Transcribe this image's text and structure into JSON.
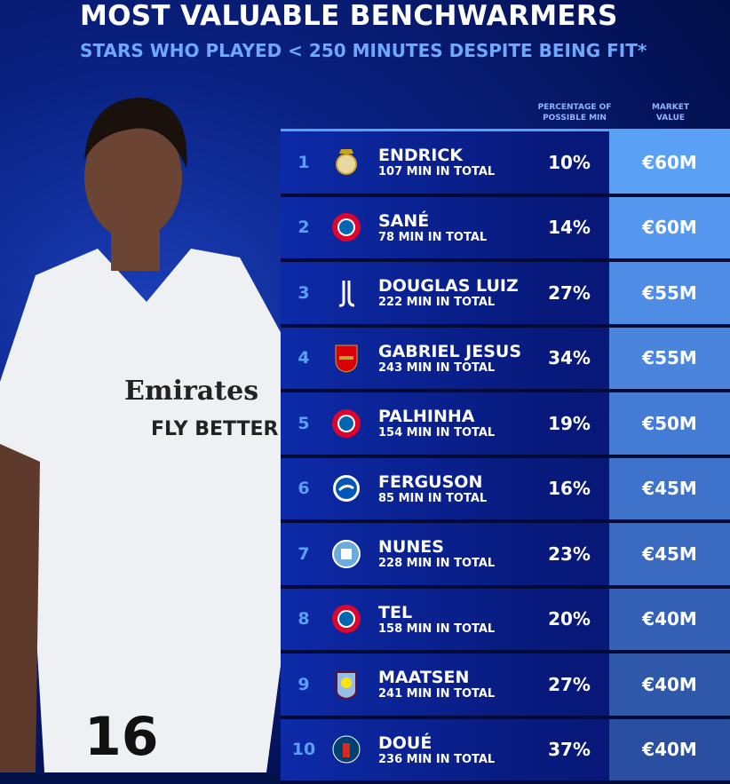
{
  "title": "MOST VALUABLE BENCHWARMERS",
  "subtitle": "STARS WHO PLAYED < 250 MINUTES DESPITE BEING FIT*",
  "headers": {
    "pct": "PERCENTAGE OF POSSIBLE MIN",
    "value": "MARKET VALUE"
  },
  "photo": {
    "sponsor": "Emirates",
    "slogan": "FLY BETTER",
    "number": "16"
  },
  "rows": [
    {
      "rank": "1",
      "name": "ENDRICK",
      "mins": "107 MIN IN TOTAL",
      "pct": "10%",
      "value": "€60M",
      "club": "real-madrid",
      "color": "#5aa0f5"
    },
    {
      "rank": "2",
      "name": "SANÉ",
      "mins": "78 MIN IN TOTAL",
      "pct": "14%",
      "value": "€60M",
      "club": "bayern",
      "color": "#5597ee"
    },
    {
      "rank": "3",
      "name": "DOUGLAS LUIZ",
      "mins": "222 MIN IN TOTAL",
      "pct": "27%",
      "value": "€55M",
      "club": "juventus",
      "color": "#4f8ce6"
    },
    {
      "rank": "4",
      "name": "GABRIEL JESUS",
      "mins": "243 MIN IN TOTAL",
      "pct": "34%",
      "value": "€55M",
      "club": "arsenal",
      "color": "#4a84dd"
    },
    {
      "rank": "5",
      "name": "PALHINHA",
      "mins": "154 MIN IN TOTAL",
      "pct": "19%",
      "value": "€50M",
      "club": "bayern",
      "color": "#447bd4"
    },
    {
      "rank": "6",
      "name": "FERGUSON",
      "mins": "85 MIN IN TOTAL",
      "pct": "16%",
      "value": "€45M",
      "club": "brighton",
      "color": "#3f72cb"
    },
    {
      "rank": "7",
      "name": "NUNES",
      "mins": "228 MIN IN TOTAL",
      "pct": "23%",
      "value": "€45M",
      "club": "man-city",
      "color": "#3a69c0"
    },
    {
      "rank": "8",
      "name": "TEL",
      "mins": "158 MIN IN TOTAL",
      "pct": "20%",
      "value": "€40M",
      "club": "bayern",
      "color": "#3461b6"
    },
    {
      "rank": "9",
      "name": "MAATSEN",
      "mins": "241 MIN IN TOTAL",
      "pct": "27%",
      "value": "€40M",
      "club": "aston-villa",
      "color": "#2f58ab"
    },
    {
      "rank": "10",
      "name": "DOUÉ",
      "mins": "236 MIN IN TOTAL",
      "pct": "37%",
      "value": "€40M",
      "club": "psg",
      "color": "#2a4fa0"
    }
  ]
}
